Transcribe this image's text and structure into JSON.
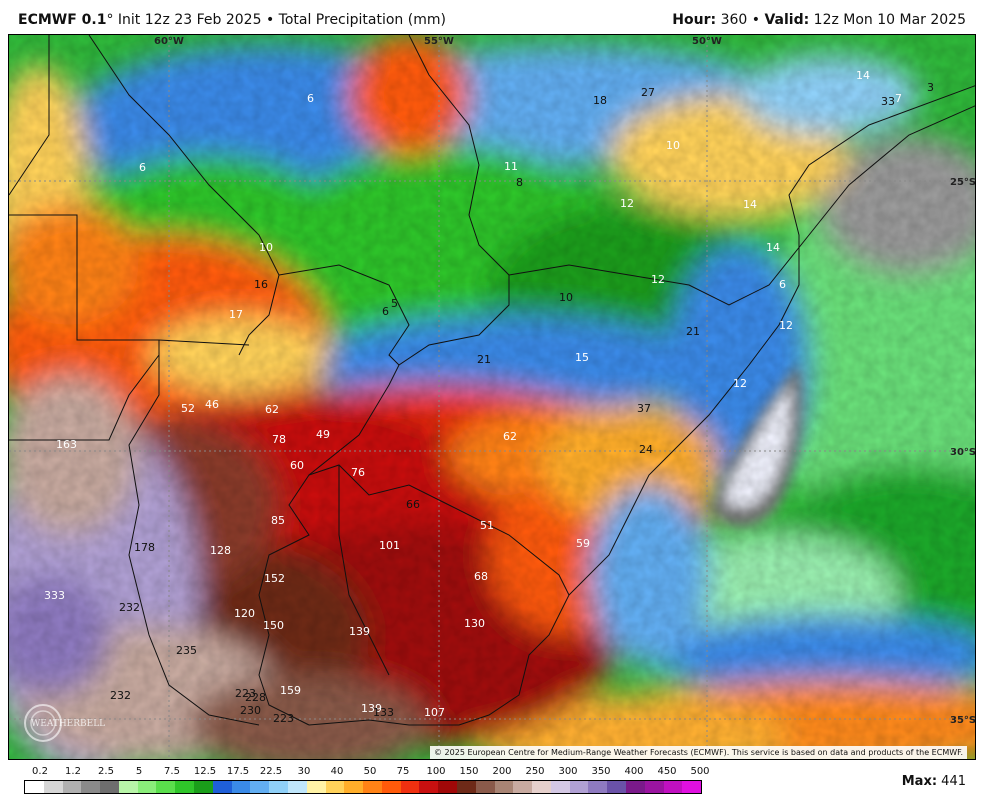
{
  "header": {
    "model": "ECMWF 0.1",
    "degree": "°",
    "init": "Init 12z 23 Feb 2025",
    "sep": "•",
    "product": "Total Precipitation (mm)",
    "hour_label": "Hour:",
    "hour": "360",
    "valid_label": "Valid:",
    "valid": "12z Mon 10 Mar 2025"
  },
  "grid_labels": {
    "lon1": "60°W",
    "lon2": "55°W",
    "lon3": "50°W",
    "lat1": "25°S",
    "lat2": "30°S",
    "lat3": "35°S"
  },
  "values": {
    "v1": "6",
    "v2": "18",
    "v3": "27",
    "v4": "14",
    "v5": "33",
    "v6": "7",
    "v7": "3",
    "v8": "6",
    "v9": "11",
    "v10": "8",
    "v11": "10",
    "v12": "12",
    "v13": "14",
    "v14": "10",
    "v15": "16",
    "v16": "17",
    "v17": "5",
    "v18": "6",
    "v19": "10",
    "v20": "12",
    "v21": "14",
    "v22": "6",
    "v23": "21",
    "v24": "21",
    "v25": "15",
    "v26": "12",
    "v27": "12",
    "v28": "37",
    "v29": "52",
    "v30": "46",
    "v31": "62",
    "v32": "163",
    "v33": "78",
    "v34": "49",
    "v35": "62",
    "v36": "24",
    "v37": "60",
    "v38": "76",
    "v39": "66",
    "v40": "85",
    "v41": "51",
    "v42": "59",
    "v43": "178",
    "v44": "128",
    "v45": "101",
    "v46": "152",
    "v47": "68",
    "v48": "333",
    "v49": "232",
    "v50": "120",
    "v51": "150",
    "v52": "139",
    "v53": "130",
    "v54": "235",
    "v55": "232",
    "v56": "223",
    "v57": "228",
    "v58": "159",
    "v59": "230",
    "v60": "223",
    "v61": "139",
    "v62": "133",
    "v63": "107"
  },
  "logo_text": "WEATHERBELL",
  "copyright": "© 2025 European Centre for Medium-Range Weather Forecasts (ECMWF). This service is based on data and products of the ECMWF.",
  "colorbar": {
    "labels": [
      "0.2",
      "1.2",
      "2.5",
      "5",
      "7.5",
      "12.5",
      "17.5",
      "22.5",
      "30",
      "40",
      "50",
      "75",
      "100",
      "150",
      "200",
      "250",
      "300",
      "350",
      "400",
      "450",
      "500"
    ],
    "colors": [
      "#ffffff",
      "#d6d6d6",
      "#b0b0b0",
      "#8a8a8a",
      "#6e6e6e",
      "#b8f5a8",
      "#8aed7a",
      "#5ade4c",
      "#2fc52a",
      "#1a9e1a",
      "#1f5fd8",
      "#3a8ae8",
      "#62aef2",
      "#8fd0f8",
      "#bfe6fb",
      "#fff3a6",
      "#ffd25a",
      "#ffae2a",
      "#ff8216",
      "#ff5a0a",
      "#f03010",
      "#c81010",
      "#a00808",
      "#6e2a18",
      "#8a5a4a",
      "#a88474",
      "#c8aaa0",
      "#e6d0cc",
      "#d4c8e4",
      "#b0a0d4",
      "#8e7ac0",
      "#6a52a8",
      "#7a1a8a",
      "#9a14a0",
      "#c010c0",
      "#e010e0"
    ]
  },
  "max_label": "Max:",
  "max_value": "441"
}
